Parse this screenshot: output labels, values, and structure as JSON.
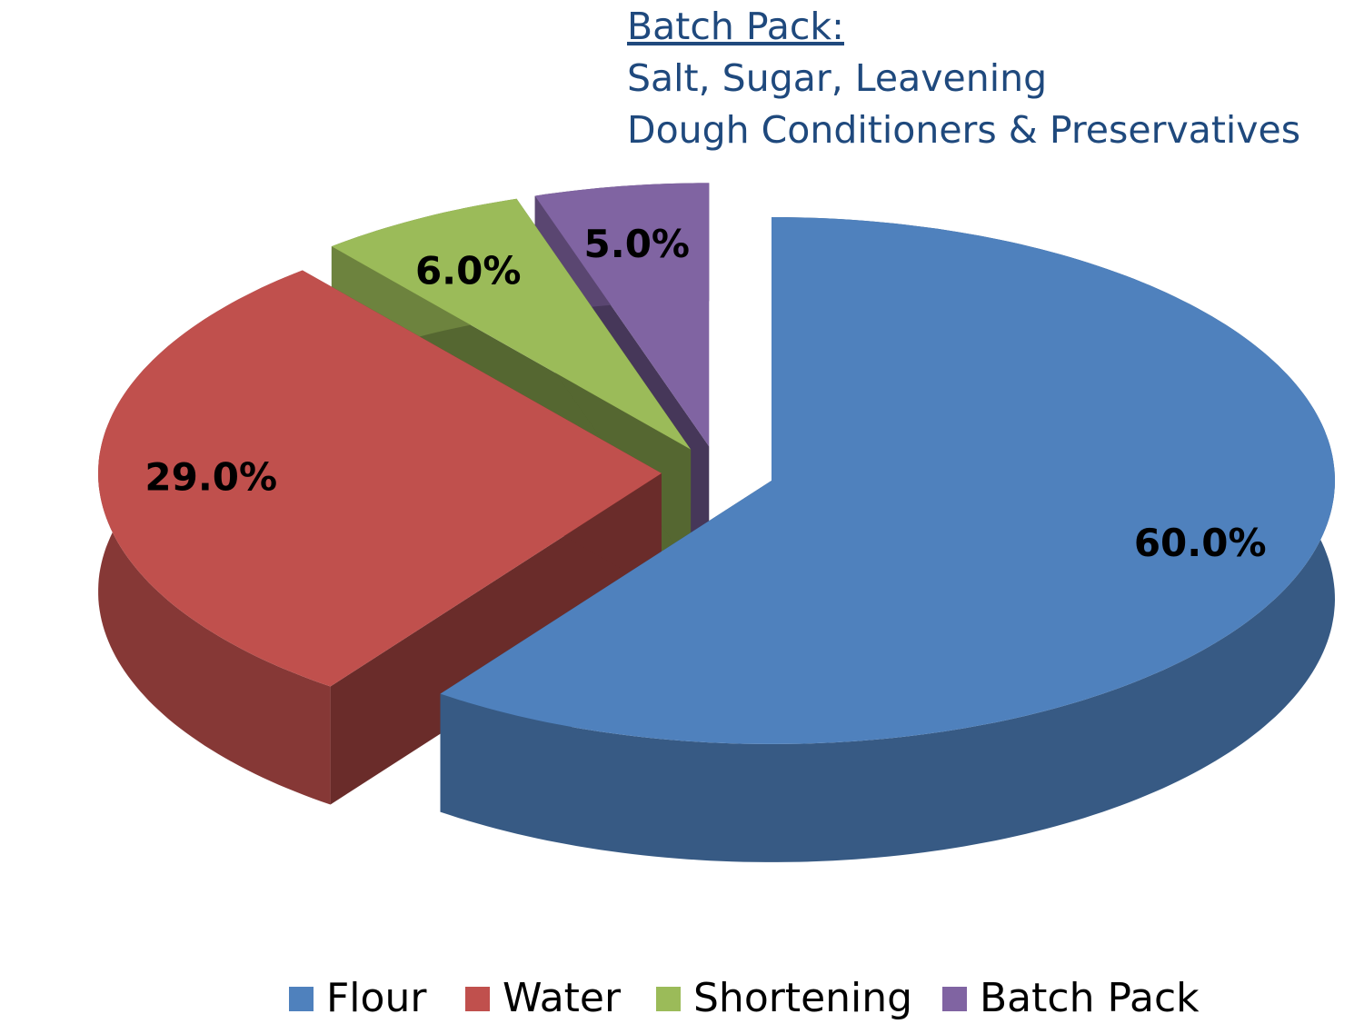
{
  "chart_data": {
    "type": "pie",
    "categories": [
      "Flour",
      "Water",
      "Shortening",
      "Batch Pack"
    ],
    "values": [
      60,
      29,
      6,
      5
    ],
    "value_labels": [
      "60.0%",
      "29.0%",
      "6.0%",
      "5.0%"
    ],
    "colors": [
      "#4f81bd",
      "#c0504d",
      "#9bbb59",
      "#8064a2"
    ],
    "annotation": [
      "Batch Pack:",
      "Salt, Sugar, Leavening",
      "Dough Conditioners & Preservatives"
    ],
    "legend": "bottom"
  }
}
